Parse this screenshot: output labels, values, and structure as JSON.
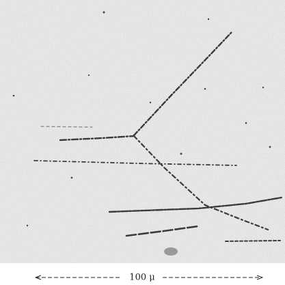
{
  "scale_bar": {
    "label": "100 μ"
  }
}
